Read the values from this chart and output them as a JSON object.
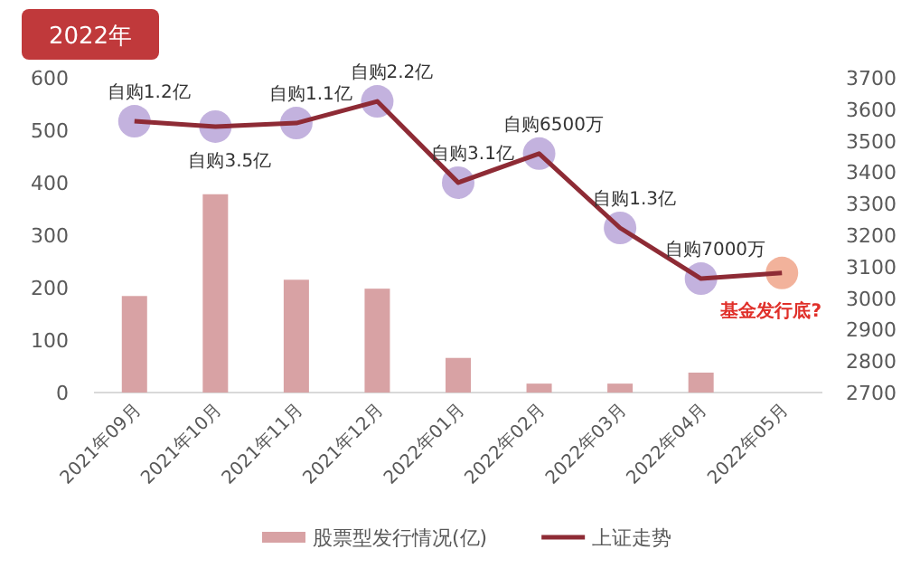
{
  "chart_data": {
    "type": "bar",
    "title": "2022年",
    "categories": [
      "2021年09月",
      "2021年10月",
      "2021年11月",
      "2021年12月",
      "2022年01月",
      "2022年02月",
      "2022年03月",
      "2022年04月",
      "2022年05月"
    ],
    "series": [
      {
        "name": "股票型发行情况(亿)",
        "color": "#d8a2a4",
        "values": [
          184,
          378,
          215,
          198,
          66,
          17,
          17,
          38,
          null
        ]
      },
      {
        "name": "上证走势",
        "type": "line",
        "axis": "y2",
        "color": "#8e2b35",
        "marker": "circle",
        "colors": [
          "#b9a4d8",
          "#b9a4d8",
          "#b9a4d8",
          "#b9a4d8",
          "#b9a4d8",
          "#b9a4d8",
          "#b9a4d8",
          "#b9a4d8",
          "#f0a58a"
        ],
        "values": [
          3562,
          3545,
          3556,
          3625,
          3367,
          3459,
          3223,
          3062,
          3080
        ]
      }
    ],
    "ylim": [
      0,
      600
    ],
    "yticks": [
      0,
      100,
      200,
      300,
      400,
      500,
      600
    ],
    "y2lim": [
      2700,
      3700
    ],
    "y2ticks": [
      2700,
      2800,
      2900,
      3000,
      3100,
      3200,
      3300,
      3400,
      3500,
      3600,
      3700
    ],
    "annotations": [
      "自购1.2亿",
      "自购3.5亿",
      "自购1.1亿",
      "自购2.2亿",
      "自购3.1亿",
      "自购6500万",
      "自购1.3亿",
      "自购7000万",
      "基金发行底?"
    ],
    "legend": "bottom",
    "grid": false
  }
}
